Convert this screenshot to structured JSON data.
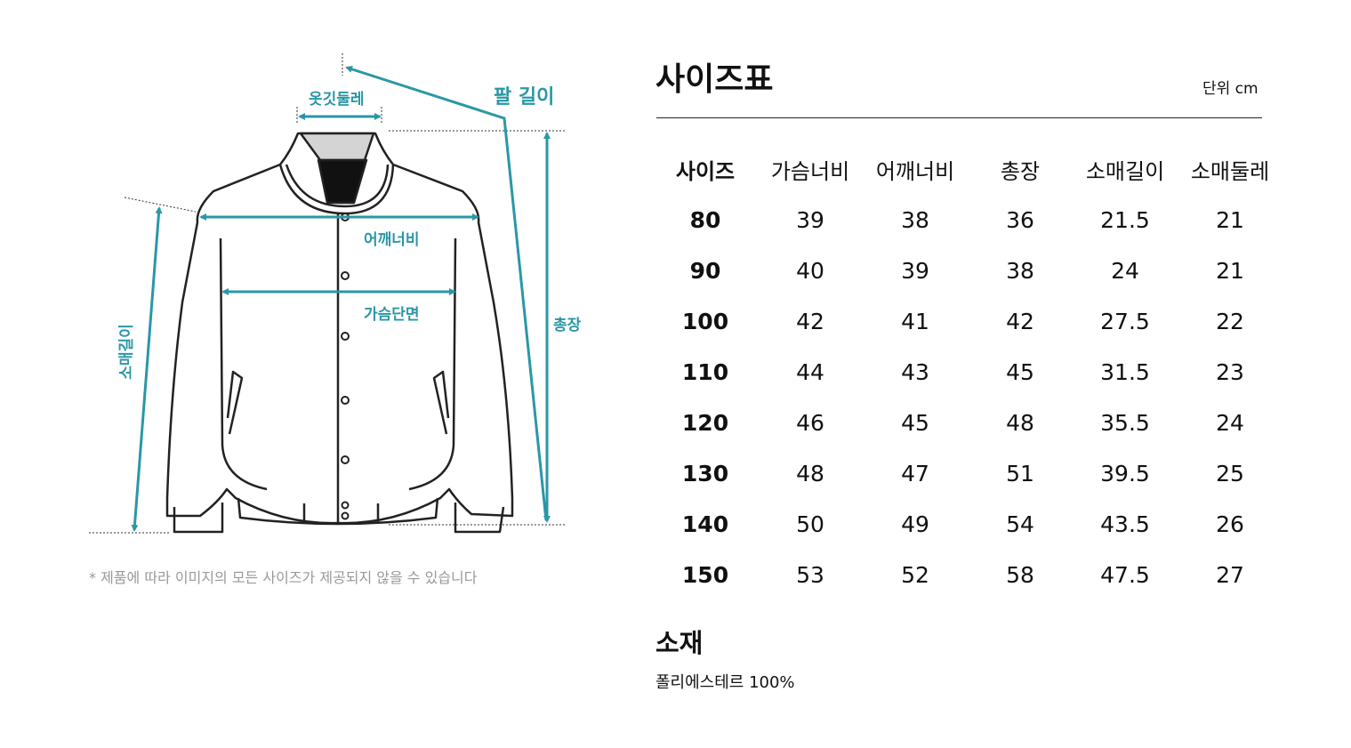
{
  "diagram": {
    "accent_color": "#2a97a6",
    "labels": {
      "collar": "옷깃둘레",
      "arm_length": "팔 길이",
      "shoulder": "어깨너비",
      "chest": "가슴단면",
      "total_length": "총장",
      "sleeve_length": "소매길이"
    },
    "note": "* 제품에 따라 이미지의 모든 사이즈가 제공되지 않을 수 있습니다"
  },
  "size_chart": {
    "title": "사이즈표",
    "unit": "단위 cm",
    "headers": [
      "사이즈",
      "가슴너비",
      "어깨너비",
      "총장",
      "소매길이",
      "소매둘레"
    ],
    "rows": [
      [
        "80",
        "39",
        "38",
        "36",
        "21.5",
        "21"
      ],
      [
        "90",
        "40",
        "39",
        "38",
        "24",
        "21"
      ],
      [
        "100",
        "42",
        "41",
        "42",
        "27.5",
        "22"
      ],
      [
        "110",
        "44",
        "43",
        "45",
        "31.5",
        "23"
      ],
      [
        "120",
        "46",
        "45",
        "48",
        "35.5",
        "24"
      ],
      [
        "130",
        "48",
        "47",
        "51",
        "39.5",
        "25"
      ],
      [
        "140",
        "50",
        "49",
        "54",
        "43.5",
        "26"
      ],
      [
        "150",
        "53",
        "52",
        "58",
        "47.5",
        "27"
      ]
    ]
  },
  "material": {
    "title": "소재",
    "value": "폴리에스테르 100%"
  }
}
